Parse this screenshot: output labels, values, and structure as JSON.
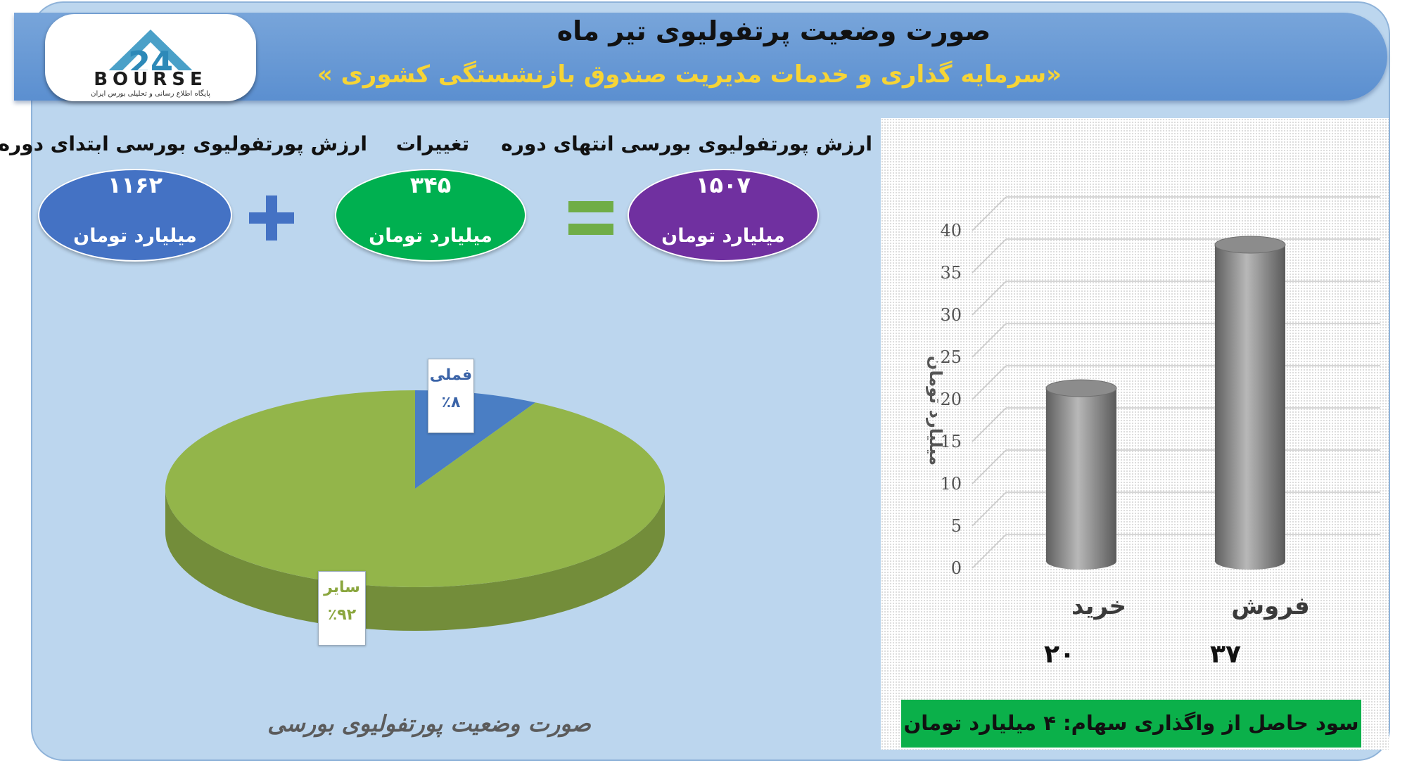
{
  "header": {
    "title": "صورت وضعیت پرتفولیوی تیر ماه",
    "subtitle": "«سرمایه گذاری و خدمات مدیریت صندوق بازنشستگی کشوری »"
  },
  "logo": {
    "text": "BOURSE",
    "tagline": "پایگاه اطلاع رسانی و تحلیلی بورس ایران"
  },
  "summary": {
    "end_period": {
      "caption": "ارزش پورتفولیوی بورسی انتهای دوره",
      "value": "۱۵۰۷",
      "unit": "میلیارد تومان",
      "color": "#7030a0"
    },
    "changes": {
      "caption": "تغییرات",
      "value": "۳۴۵",
      "unit": "میلیارد تومان",
      "color": "#00b050"
    },
    "start_period": {
      "caption": "ارزش پورتفولیوی بورسی ابتدای دوره",
      "value": "۱۱۶۲",
      "unit": "میلیارد تومان",
      "color": "#4472c4"
    },
    "plus_color": "#4472c4",
    "equals_color": "#70ad47"
  },
  "pie_caption": "صورت وضعیت پورتفولیوی بورسی",
  "chart_data": [
    {
      "type": "pie",
      "title": "",
      "slices": [
        {
          "label": "فملی",
          "value": 8,
          "value_label": "٪۸",
          "color": "#4a7ec4",
          "label_color": "#3b64a8"
        },
        {
          "label": "سایر",
          "value": 92,
          "value_label": "٪۹۲",
          "color": "#93b54a",
          "label_color": "#8aa63e"
        }
      ]
    },
    {
      "type": "bar",
      "title": "",
      "categories": [
        "خرید",
        "فروش"
      ],
      "values": [
        20,
        37
      ],
      "value_labels": [
        "۲۰",
        "۳۷"
      ],
      "ylabel": "میلیارد تومان",
      "ylim": [
        0,
        40
      ],
      "yticks": [
        0,
        5,
        10,
        15,
        20,
        25,
        30,
        35,
        40
      ],
      "grid": true,
      "bar_color": "#8a8a8a"
    }
  ],
  "profit_note": "سود حاصل از واگذاری سهام: ۴ میلیارد تومان"
}
